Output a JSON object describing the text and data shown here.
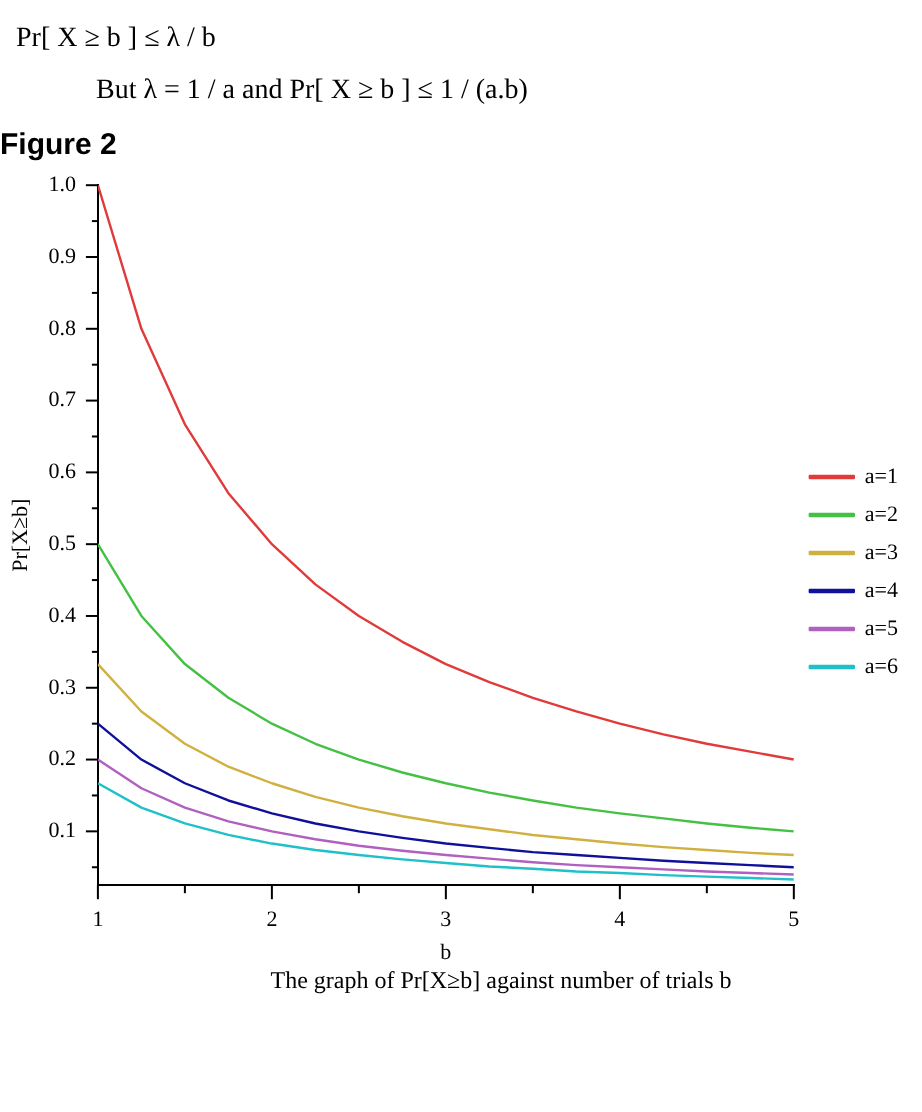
{
  "chart_data": {
    "type": "line",
    "title": "Figure 2",
    "xlabel": "b",
    "ylabel": "Pr[X≥b]",
    "annotations": [
      "Pr[ X ≥ b ] ≤ λ / b",
      "But λ = 1 / a and Pr[ X ≥ b ] ≤ 1 / (a.b)",
      "The graph of Pr[X≥b] against number of trials b"
    ],
    "x": [
      1,
      1.25,
      1.5,
      1.75,
      2,
      2.25,
      2.5,
      2.75,
      3,
      3.25,
      3.5,
      3.75,
      4,
      4.25,
      4.5,
      4.75,
      5
    ],
    "series": [
      {
        "name": "a=1",
        "color": "#e03a3a",
        "values": [
          1,
          0.8,
          0.667,
          0.571,
          0.5,
          0.444,
          0.4,
          0.364,
          0.333,
          0.308,
          0.286,
          0.267,
          0.25,
          0.235,
          0.222,
          0.211,
          0.2
        ]
      },
      {
        "name": "a=2",
        "color": "#44c044",
        "values": [
          0.5,
          0.4,
          0.333,
          0.286,
          0.25,
          0.222,
          0.2,
          0.182,
          0.167,
          0.154,
          0.143,
          0.133,
          0.125,
          0.118,
          0.111,
          0.105,
          0.1
        ]
      },
      {
        "name": "a=3",
        "color": "#d0b040",
        "values": [
          0.333,
          0.267,
          0.222,
          0.19,
          0.167,
          0.148,
          0.133,
          0.121,
          0.111,
          0.103,
          0.095,
          0.089,
          0.083,
          0.078,
          0.074,
          0.07,
          0.067
        ]
      },
      {
        "name": "a=4",
        "color": "#10109a",
        "values": [
          0.25,
          0.2,
          0.167,
          0.143,
          0.125,
          0.111,
          0.1,
          0.091,
          0.083,
          0.077,
          0.071,
          0.067,
          0.063,
          0.059,
          0.056,
          0.053,
          0.05
        ]
      },
      {
        "name": "a=5",
        "color": "#b060c0",
        "values": [
          0.2,
          0.16,
          0.133,
          0.114,
          0.1,
          0.089,
          0.08,
          0.073,
          0.067,
          0.062,
          0.057,
          0.053,
          0.05,
          0.047,
          0.044,
          0.042,
          0.04
        ]
      },
      {
        "name": "a=6",
        "color": "#20c0c8",
        "values": [
          0.167,
          0.133,
          0.111,
          0.095,
          0.083,
          0.074,
          0.067,
          0.061,
          0.056,
          0.051,
          0.048,
          0.044,
          0.042,
          0.039,
          0.037,
          0.035,
          0.033
        ]
      }
    ],
    "xlim": [
      1,
      5
    ],
    "xticks": [
      1,
      {
        "value": 1.5,
        "label": null
      },
      2,
      {
        "value": 2.5,
        "label": null
      },
      3,
      {
        "value": 3.5,
        "label": null
      },
      4,
      {
        "value": 4.5,
        "label": null
      },
      5
    ],
    "ylim": [
      0.025,
      1.0
    ],
    "yticks": [
      {
        "value": 0.05,
        "label": null
      },
      0.1,
      {
        "value": 0.15,
        "label": null
      },
      0.2,
      {
        "value": 0.25,
        "label": null
      },
      0.3,
      {
        "value": 0.35,
        "label": null
      },
      0.4,
      {
        "value": 0.45,
        "label": null
      },
      0.5,
      {
        "value": 0.55,
        "label": null
      },
      0.6,
      {
        "value": 0.65,
        "label": null
      },
      0.7,
      {
        "value": 0.75,
        "label": null
      },
      0.8,
      {
        "value": 0.85,
        "label": null
      },
      0.9,
      {
        "value": 0.95,
        "label": null
      },
      {
        "value": 1.0,
        "label": "1.0"
      }
    ],
    "grid": false,
    "legend": "right",
    "marker": "none",
    "line_style": "solid"
  }
}
